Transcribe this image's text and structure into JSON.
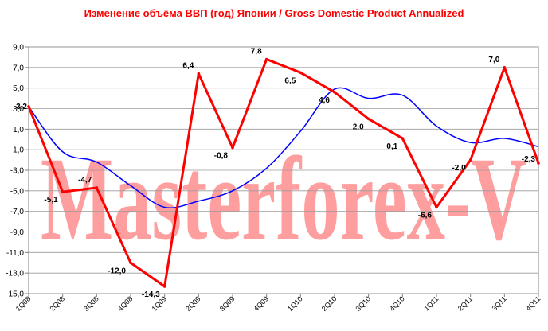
{
  "chart_data": {
    "type": "line",
    "title": "Изменение объёма ВВП (год) Японии / Gross Domestic Product Annualized",
    "watermark": "Masterforex-V",
    "categories": [
      "1Q08",
      "2Q08",
      "3Q08",
      "4Q08",
      "1Q09",
      "2Q09",
      "3Q09",
      "4Q09",
      "1Q10",
      "2Q10",
      "3Q10",
      "4Q10",
      "1Q11",
      "2Q11",
      "3Q11",
      "4Q11"
    ],
    "ylim": [
      -15,
      9
    ],
    "yticks": [
      "9,0",
      "7,0",
      "5,0",
      "3,0",
      "1,0",
      "-1,0",
      "-3,0",
      "-5,0",
      "-7,0",
      "-9,0",
      "-11,0",
      "-13,0",
      "-15,0"
    ],
    "grid": true,
    "series": [
      {
        "color": "#ff0000",
        "values": [
          3.2,
          -5.1,
          -4.7,
          -12.0,
          -14.3,
          6.4,
          -0.8,
          7.8,
          6.5,
          4.6,
          2.0,
          0.1,
          -6.6,
          -2.0,
          7.0,
          -2.3
        ],
        "labels": [
          "3,2",
          "-5,1",
          "-4,7",
          "-12,0",
          "-14,3",
          "6,4",
          "-0,8",
          "7,8",
          "6,5",
          "4,6",
          "2,0",
          "0,1",
          "-6,6",
          "-2,0",
          "7,0",
          "-2,3"
        ]
      },
      {
        "color": "#0000ff",
        "values": [
          3.2,
          -1.2,
          -2.2,
          -4.5,
          -6.6,
          -6.0,
          -5.0,
          -2.8,
          0.8,
          4.9,
          4.0,
          4.3,
          1.3,
          -0.3,
          0.1,
          -0.7
        ]
      }
    ]
  }
}
